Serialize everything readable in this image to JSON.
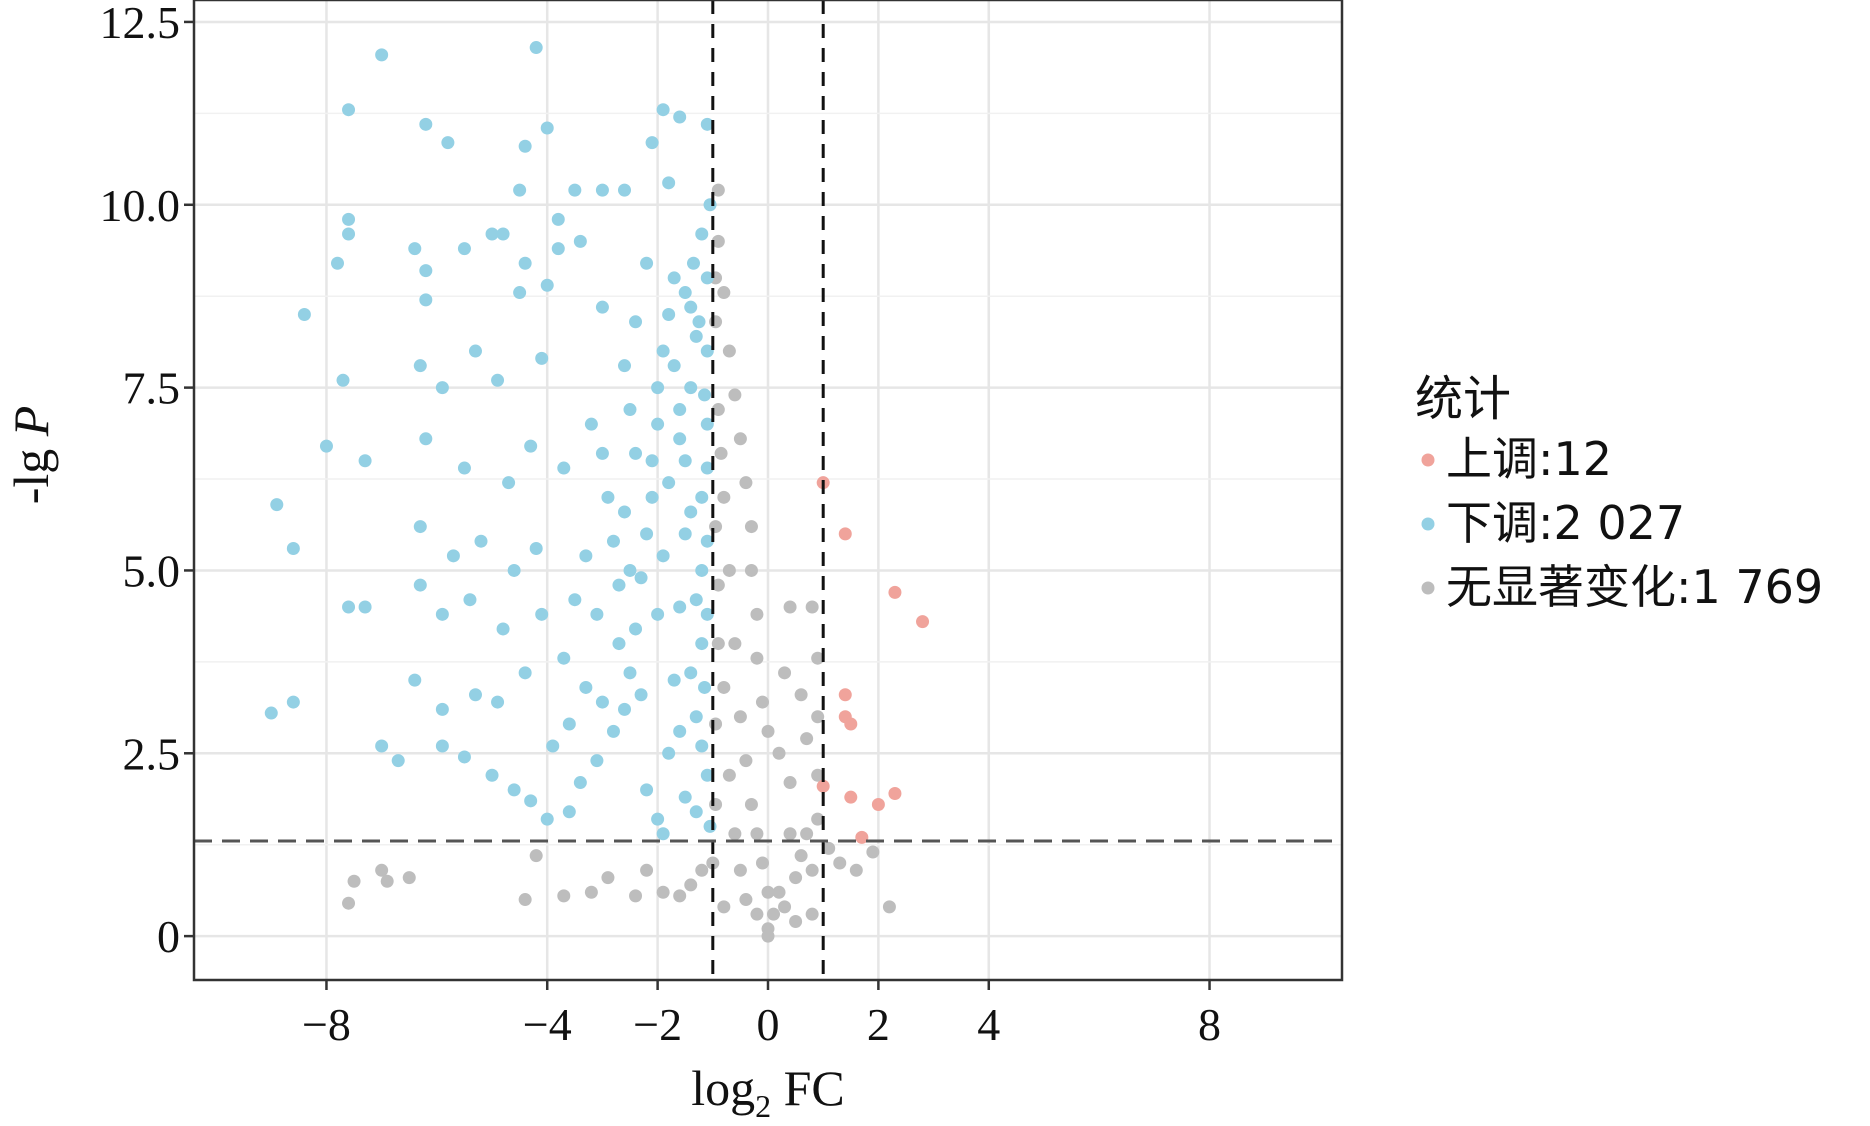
{
  "chart_data": {
    "type": "scatter",
    "title": "",
    "xlabel": "log",
    "xlabel_sub": "2",
    "xlabel_suffix": " FC",
    "ylabel": "-lg ",
    "ylabel_italic": "P",
    "xlim": [
      -10.4,
      10.4
    ],
    "ylim": [
      -0.6,
      12.8
    ],
    "x_ticks": [
      -8,
      -4,
      -2,
      0,
      2,
      4,
      8
    ],
    "x_tick_labels": [
      "−8",
      "−4",
      "−2",
      "0",
      "2",
      "4",
      "8"
    ],
    "y_ticks": [
      0,
      2.5,
      5.0,
      7.5,
      10.0,
      12.5
    ],
    "y_tick_labels": [
      "0",
      "2.5",
      "5.0",
      "7.5",
      "10.0",
      "12.5"
    ],
    "grid": true,
    "threshold_lines": {
      "x": [
        -1,
        1
      ],
      "y": 1.3
    },
    "legend": {
      "title": "统计",
      "placement": "right",
      "entries": [
        {
          "label": "上调:12",
          "color": "#f0a39b"
        },
        {
          "label": "下调:2 027",
          "color": "#93d0e4"
        },
        {
          "label": "无显著变化:1 769",
          "color": "#bdbdbd"
        }
      ]
    },
    "series": [
      {
        "name": "上调:12",
        "color": "#f0a39b",
        "points": [
          [
            1.0,
            6.2
          ],
          [
            1.4,
            5.5
          ],
          [
            2.3,
            4.7
          ],
          [
            2.8,
            4.3
          ],
          [
            1.4,
            3.3
          ],
          [
            1.4,
            3.0
          ],
          [
            1.5,
            2.9
          ],
          [
            1.0,
            2.05
          ],
          [
            1.5,
            1.9
          ],
          [
            2.3,
            1.95
          ],
          [
            2.0,
            1.8
          ],
          [
            1.7,
            1.35
          ]
        ]
      },
      {
        "name": "下调:2 027",
        "color": "#93d0e4",
        "points": [
          [
            -7.0,
            12.05
          ],
          [
            -4.2,
            12.15
          ],
          [
            -7.6,
            11.3
          ],
          [
            -6.2,
            11.1
          ],
          [
            -5.8,
            10.85
          ],
          [
            -4.4,
            10.8
          ],
          [
            -4.0,
            11.05
          ],
          [
            -2.1,
            10.85
          ],
          [
            -1.9,
            11.3
          ],
          [
            -1.6,
            11.2
          ],
          [
            -1.1,
            11.1
          ],
          [
            -4.5,
            10.2
          ],
          [
            -3.5,
            10.2
          ],
          [
            -3.0,
            10.2
          ],
          [
            -2.6,
            10.2
          ],
          [
            -1.8,
            10.3
          ],
          [
            -7.6,
            9.6
          ],
          [
            -7.6,
            9.8
          ],
          [
            -7.8,
            9.2
          ],
          [
            -6.4,
            9.4
          ],
          [
            -6.2,
            9.1
          ],
          [
            -5.5,
            9.4
          ],
          [
            -5.0,
            9.6
          ],
          [
            -4.8,
            9.6
          ],
          [
            -4.4,
            9.2
          ],
          [
            -3.8,
            9.8
          ],
          [
            -3.8,
            9.4
          ],
          [
            -3.4,
            9.5
          ],
          [
            -2.2,
            9.2
          ],
          [
            -8.4,
            8.5
          ],
          [
            -6.2,
            8.7
          ],
          [
            -4.5,
            8.8
          ],
          [
            -4.0,
            8.9
          ],
          [
            -3.0,
            8.6
          ],
          [
            -7.7,
            7.6
          ],
          [
            -6.3,
            7.8
          ],
          [
            -5.9,
            7.5
          ],
          [
            -5.3,
            8.0
          ],
          [
            -4.9,
            7.6
          ],
          [
            -4.1,
            7.9
          ],
          [
            -8.0,
            6.7
          ],
          [
            -7.3,
            6.5
          ],
          [
            -6.2,
            6.8
          ],
          [
            -5.5,
            6.4
          ],
          [
            -4.7,
            6.2
          ],
          [
            -4.3,
            6.7
          ],
          [
            -3.7,
            6.4
          ],
          [
            -8.9,
            5.9
          ],
          [
            -8.6,
            5.3
          ],
          [
            -6.3,
            5.6
          ],
          [
            -5.7,
            5.2
          ],
          [
            -5.2,
            5.4
          ],
          [
            -4.6,
            5.0
          ],
          [
            -4.2,
            5.3
          ],
          [
            -7.6,
            4.5
          ],
          [
            -7.3,
            4.5
          ],
          [
            -6.3,
            4.8
          ],
          [
            -5.9,
            4.4
          ],
          [
            -5.4,
            4.6
          ],
          [
            -4.8,
            4.2
          ],
          [
            -4.1,
            4.4
          ],
          [
            -9.0,
            3.05
          ],
          [
            -8.6,
            3.2
          ],
          [
            -6.4,
            3.5
          ],
          [
            -5.9,
            3.1
          ],
          [
            -5.3,
            3.3
          ],
          [
            -4.9,
            3.2
          ],
          [
            -4.4,
            3.6
          ],
          [
            -7.0,
            2.6
          ],
          [
            -6.7,
            2.4
          ],
          [
            -5.9,
            2.6
          ],
          [
            -5.5,
            2.45
          ],
          [
            -5.0,
            2.2
          ],
          [
            -4.6,
            2.0
          ],
          [
            -4.3,
            1.85
          ],
          [
            -4.0,
            1.6
          ],
          [
            -3.6,
            1.7
          ],
          [
            -3.4,
            2.1
          ],
          [
            -3.1,
            2.4
          ],
          [
            -2.8,
            2.8
          ],
          [
            -2.6,
            3.1
          ],
          [
            -2.5,
            3.6
          ],
          [
            -2.4,
            4.2
          ],
          [
            -2.3,
            4.9
          ],
          [
            -2.2,
            5.5
          ],
          [
            -2.1,
            6.0
          ],
          [
            -2.1,
            6.5
          ],
          [
            -2.0,
            7.0
          ],
          [
            -2.0,
            7.5
          ],
          [
            -1.9,
            8.0
          ],
          [
            -1.8,
            8.5
          ],
          [
            -1.7,
            9.0
          ],
          [
            -3.2,
            7.0
          ],
          [
            -3.0,
            6.6
          ],
          [
            -2.9,
            6.0
          ],
          [
            -2.8,
            5.4
          ],
          [
            -2.7,
            4.8
          ],
          [
            -2.7,
            4.0
          ],
          [
            -3.3,
            5.2
          ],
          [
            -3.5,
            4.6
          ],
          [
            -3.7,
            3.8
          ],
          [
            -3.0,
            3.2
          ],
          [
            -2.2,
            2.0
          ],
          [
            -2.0,
            1.6
          ],
          [
            -1.9,
            1.4
          ],
          [
            -1.8,
            2.5
          ],
          [
            -1.7,
            3.5
          ],
          [
            -1.6,
            4.5
          ],
          [
            -1.5,
            5.5
          ],
          [
            -1.5,
            6.5
          ],
          [
            -1.4,
            7.5
          ],
          [
            -1.3,
            8.2
          ],
          [
            -1.3,
            3.0
          ],
          [
            -1.2,
            4.0
          ],
          [
            -1.2,
            5.0
          ],
          [
            -1.2,
            6.0
          ],
          [
            -1.1,
            7.0
          ],
          [
            -1.1,
            8.0
          ],
          [
            -1.1,
            9.0
          ],
          [
            -1.1,
            2.2
          ],
          [
            -1.05,
            1.5
          ],
          [
            -1.5,
            1.9
          ],
          [
            -1.6,
            2.8
          ],
          [
            -1.4,
            3.6
          ],
          [
            -1.3,
            4.6
          ],
          [
            -1.4,
            5.8
          ],
          [
            -1.6,
            6.8
          ],
          [
            -1.7,
            7.8
          ],
          [
            -1.5,
            8.8
          ],
          [
            -1.2,
            9.6
          ],
          [
            -1.05,
            10.0
          ],
          [
            -2.4,
            8.4
          ],
          [
            -2.6,
            7.8
          ],
          [
            -2.5,
            7.2
          ],
          [
            -2.4,
            6.6
          ],
          [
            -2.6,
            5.8
          ],
          [
            -2.5,
            5.0
          ],
          [
            -3.1,
            4.4
          ],
          [
            -3.3,
            3.4
          ],
          [
            -3.6,
            2.9
          ],
          [
            -3.9,
            2.6
          ],
          [
            -2.3,
            3.3
          ],
          [
            -2.0,
            4.4
          ],
          [
            -1.9,
            5.2
          ],
          [
            -1.8,
            6.2
          ],
          [
            -1.6,
            7.2
          ],
          [
            -1.4,
            8.6
          ],
          [
            -1.3,
            1.7
          ],
          [
            -1.2,
            2.6
          ],
          [
            -1.15,
            3.4
          ],
          [
            -1.1,
            4.4
          ],
          [
            -1.1,
            5.4
          ],
          [
            -1.1,
            6.4
          ],
          [
            -1.15,
            7.4
          ],
          [
            -1.25,
            8.4
          ],
          [
            -1.35,
            9.2
          ]
        ]
      },
      {
        "name": "无显著变化:1 769",
        "color": "#bdbdbd",
        "points": [
          [
            -7.5,
            0.75
          ],
          [
            -7.6,
            0.45
          ],
          [
            -7.0,
            0.9
          ],
          [
            -6.9,
            0.75
          ],
          [
            -6.5,
            0.8
          ],
          [
            -4.4,
            0.5
          ],
          [
            -4.2,
            1.1
          ],
          [
            -3.7,
            0.55
          ],
          [
            -3.2,
            0.6
          ],
          [
            -2.9,
            0.8
          ],
          [
            -2.4,
            0.55
          ],
          [
            -2.2,
            0.9
          ],
          [
            -1.9,
            0.6
          ],
          [
            -1.6,
            0.55
          ],
          [
            -1.4,
            0.7
          ],
          [
            -1.2,
            0.9
          ],
          [
            -1.0,
            1.0
          ],
          [
            -0.9,
            10.2
          ],
          [
            -0.9,
            9.5
          ],
          [
            -0.8,
            8.8
          ],
          [
            -0.7,
            8.0
          ],
          [
            -0.6,
            7.4
          ],
          [
            -0.5,
            6.8
          ],
          [
            -0.4,
            6.2
          ],
          [
            -0.3,
            5.6
          ],
          [
            -0.3,
            5.0
          ],
          [
            -0.2,
            4.4
          ],
          [
            -0.2,
            3.8
          ],
          [
            -0.1,
            3.2
          ],
          [
            0.0,
            2.8
          ],
          [
            -0.8,
            6.0
          ],
          [
            -0.7,
            5.0
          ],
          [
            -0.6,
            4.0
          ],
          [
            -0.5,
            3.0
          ],
          [
            -0.4,
            2.4
          ],
          [
            -0.3,
            1.8
          ],
          [
            -0.2,
            1.4
          ],
          [
            -0.1,
            1.0
          ],
          [
            0.0,
            0.6
          ],
          [
            0.1,
            0.3
          ],
          [
            0.0,
            0.1
          ],
          [
            0.0,
            0.0
          ],
          [
            -0.2,
            0.3
          ],
          [
            -0.4,
            0.5
          ],
          [
            0.2,
            0.6
          ],
          [
            0.3,
            0.4
          ],
          [
            0.5,
            0.8
          ],
          [
            0.6,
            1.1
          ],
          [
            0.8,
            0.9
          ],
          [
            0.9,
            1.6
          ],
          [
            0.9,
            2.2
          ],
          [
            0.9,
            3.0
          ],
          [
            0.9,
            3.8
          ],
          [
            0.4,
            4.5
          ],
          [
            0.3,
            3.6
          ],
          [
            0.6,
            3.3
          ],
          [
            0.2,
            2.5
          ],
          [
            0.4,
            2.1
          ],
          [
            0.7,
            2.7
          ],
          [
            0.8,
            4.5
          ],
          [
            -0.9,
            7.2
          ],
          [
            -0.85,
            6.6
          ],
          [
            -0.9,
            4.8
          ],
          [
            -0.8,
            3.4
          ],
          [
            -0.7,
            2.2
          ],
          [
            -0.6,
            1.4
          ],
          [
            -0.5,
            0.9
          ],
          [
            -0.8,
            0.4
          ],
          [
            -0.95,
            1.8
          ],
          [
            -0.95,
            2.9
          ],
          [
            -0.9,
            4.0
          ],
          [
            -0.95,
            5.6
          ],
          [
            -0.95,
            8.4
          ],
          [
            -0.95,
            9.0
          ],
          [
            0.4,
            1.4
          ],
          [
            0.7,
            1.4
          ],
          [
            0.5,
            0.2
          ],
          [
            0.8,
            0.3
          ],
          [
            2.2,
            0.4
          ],
          [
            1.1,
            1.2
          ],
          [
            1.3,
            1.0
          ],
          [
            1.6,
            0.9
          ],
          [
            1.9,
            1.15
          ]
        ]
      }
    ]
  }
}
